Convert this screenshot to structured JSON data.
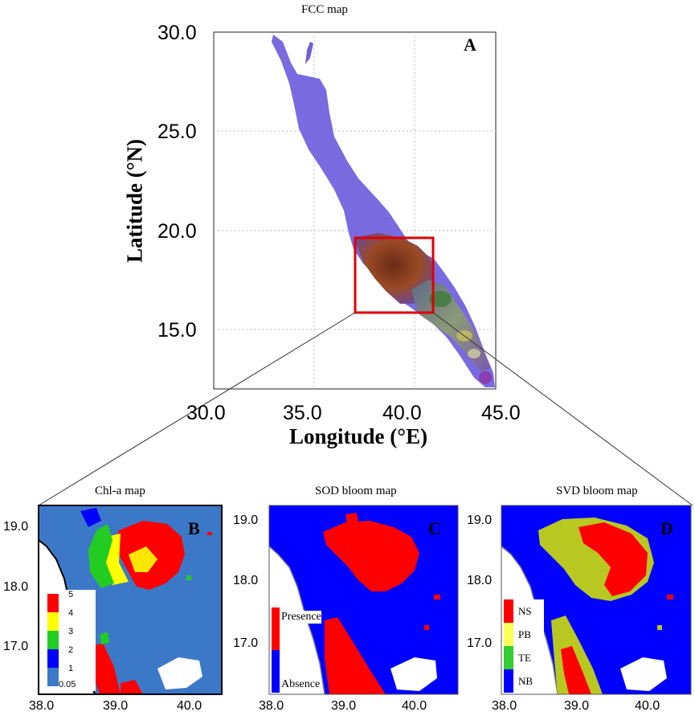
{
  "main_map": {
    "title": "FCC map",
    "panel_label": "A",
    "y_label": "Latitude (°N)",
    "x_label": "Longitude (°E)",
    "y_ticks": [
      "30.0",
      "25.0",
      "20.0",
      "15.0"
    ],
    "x_ticks": [
      "30.0",
      "35.0",
      "40.0",
      "45.0"
    ]
  },
  "panels": [
    {
      "title": "Chl-a map",
      "letter": "B",
      "y_ticks": [
        "19.0",
        "18.0",
        "17.0"
      ],
      "x_ticks": [
        "38.0",
        "39.0",
        "40.0"
      ],
      "legend_values": [
        "5",
        "4",
        "3",
        "2",
        "1",
        "0.05"
      ],
      "legend_colors": [
        "#ff0000",
        "#ffff00",
        "#22cc22",
        "#0000ff",
        "#3c78c8"
      ]
    },
    {
      "title": "SOD bloom map",
      "letter": "C",
      "y_ticks": [
        "19.0",
        "18.0",
        "17.0"
      ],
      "x_ticks": [
        "38.0",
        "39.0",
        "40.0"
      ],
      "legend_labels": [
        "Presence",
        "Absence"
      ],
      "legend_colors": [
        "#ff0000",
        "#0000ff"
      ]
    },
    {
      "title": "SVD bloom map",
      "letter": "D",
      "y_ticks": [
        "19.0",
        "18.0",
        "17.0"
      ],
      "x_ticks": [
        "38.0",
        "39.0",
        "40.0"
      ],
      "legend_labels": [
        "NS",
        "PB",
        "TE",
        "NB"
      ],
      "legend_colors": [
        "#ff0000",
        "#ffff55",
        "#33cc33",
        "#0000ff"
      ]
    }
  ],
  "colors": {
    "sea_purple": "#7a6adf",
    "highlight_box": "#e00000",
    "panel_b_bg": "#3c78c8",
    "panel_cd_bg": "#0000ff"
  }
}
